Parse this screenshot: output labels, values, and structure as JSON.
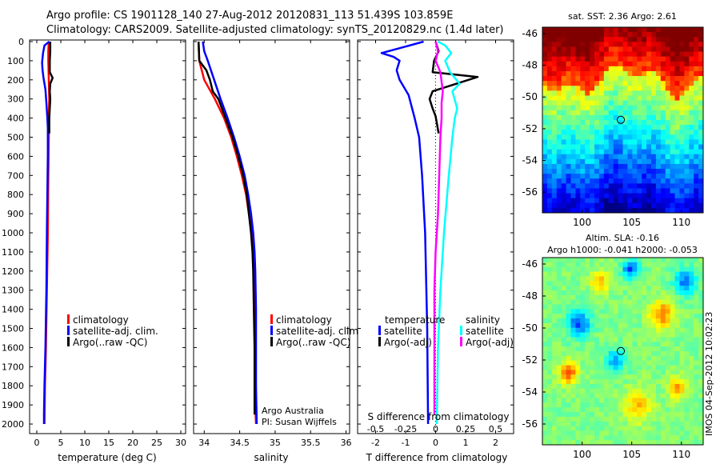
{
  "header": {
    "line1": "Argo profile: CS 1901128_140 27-Aug-2012 20120831_113 51.439S 103.859E",
    "line2": "Climatology: CARS2009. Satellite-adjusted climatology: synTS_20120829.nc (1.4d later)"
  },
  "colors": {
    "climatology": "#ff0000",
    "satellite": "#0000ff",
    "argo": "#000000",
    "salinity_satellite": "#00ffff",
    "salinity_argo": "#ff00ff"
  },
  "depth_ticks": [
    "0",
    "100",
    "200",
    "300",
    "400",
    "500",
    "600",
    "700",
    "800",
    "900",
    "1000",
    "1100",
    "1200",
    "1300",
    "1400",
    "1500",
    "1600",
    "1700",
    "1800",
    "1900",
    "2000"
  ],
  "chart_data": [
    {
      "type": "line",
      "xlabel": "temperature (deg C)",
      "xticks": [
        "0",
        "5",
        "10",
        "15",
        "20",
        "25",
        "30"
      ],
      "xlim": [
        -1.5,
        31
      ],
      "ylim": [
        2050,
        0
      ],
      "legend": [
        "climatology",
        "satellite-adj. clim.",
        "Argo(..raw -QC)"
      ],
      "series": [
        {
          "name": "climatology",
          "color": "#ff0000",
          "points": [
            [
              2.5,
              0
            ],
            [
              2.4,
              50
            ],
            [
              2.4,
              100
            ],
            [
              2.5,
              200
            ],
            [
              2.6,
              300
            ],
            [
              2.5,
              400
            ],
            [
              2.5,
              500
            ],
            [
              2.4,
              700
            ],
            [
              2.3,
              1000
            ],
            [
              2.1,
              1300
            ],
            [
              1.9,
              1600
            ],
            [
              1.7,
              1800
            ],
            [
              1.6,
              2000
            ]
          ]
        },
        {
          "name": "satellite-adj. clim.",
          "color": "#0000ff",
          "points": [
            [
              2.6,
              0
            ],
            [
              1.6,
              20
            ],
            [
              1.3,
              60
            ],
            [
              1.1,
              110
            ],
            [
              1.2,
              150
            ],
            [
              1.4,
              190
            ],
            [
              1.8,
              250
            ],
            [
              2.0,
              320
            ],
            [
              2.2,
              400
            ],
            [
              2.3,
              450
            ],
            [
              2.3,
              600
            ],
            [
              2.2,
              800
            ],
            [
              2.1,
              1000
            ],
            [
              2.0,
              1300
            ],
            [
              1.8,
              1600
            ],
            [
              1.6,
              1800
            ],
            [
              1.5,
              1950
            ],
            [
              1.5,
              2000
            ]
          ]
        },
        {
          "name": "Argo(..raw -QC)",
          "color": "#000000",
          "points": [
            [
              2.8,
              0
            ],
            [
              2.8,
              50
            ],
            [
              2.7,
              100
            ],
            [
              2.7,
              160
            ],
            [
              3.3,
              190
            ],
            [
              2.8,
              220
            ],
            [
              2.7,
              260
            ],
            [
              2.8,
              300
            ],
            [
              2.7,
              350
            ],
            [
              2.6,
              400
            ],
            [
              2.6,
              480
            ]
          ]
        }
      ]
    },
    {
      "type": "line",
      "xlabel": "salinity",
      "xticks": [
        "34",
        "34.5",
        "35",
        "35.5",
        "36"
      ],
      "xlim": [
        33.85,
        36.05
      ],
      "ylim": [
        2050,
        0
      ],
      "legend": [
        "climatology",
        "satellite-adj. clim.",
        "Argo(..raw -QC)"
      ],
      "annotations": [
        "Argo Australia",
        "PI: Susan Wijffels"
      ],
      "series": [
        {
          "name": "climatology",
          "color": "#ff0000",
          "points": [
            [
              33.92,
              0
            ],
            [
              33.93,
              100
            ],
            [
              34.0,
              200
            ],
            [
              34.15,
              300
            ],
            [
              34.28,
              400
            ],
            [
              34.38,
              500
            ],
            [
              34.46,
              600
            ],
            [
              34.53,
              700
            ],
            [
              34.59,
              800
            ],
            [
              34.63,
              900
            ],
            [
              34.67,
              1000
            ],
            [
              34.69,
              1100
            ],
            [
              34.7,
              1200
            ],
            [
              34.71,
              1400
            ],
            [
              34.72,
              1600
            ],
            [
              34.72,
              1800
            ],
            [
              34.72,
              1900
            ],
            [
              34.73,
              2000
            ]
          ]
        },
        {
          "name": "satellite-adj. clim.",
          "color": "#0000ff",
          "points": [
            [
              33.98,
              0
            ],
            [
              34.0,
              50
            ],
            [
              34.05,
              100
            ],
            [
              34.14,
              200
            ],
            [
              34.23,
              300
            ],
            [
              34.33,
              400
            ],
            [
              34.42,
              500
            ],
            [
              34.5,
              600
            ],
            [
              34.57,
              700
            ],
            [
              34.62,
              800
            ],
            [
              34.66,
              900
            ],
            [
              34.69,
              1000
            ],
            [
              34.71,
              1100
            ],
            [
              34.72,
              1200
            ],
            [
              34.73,
              1400
            ],
            [
              34.73,
              1600
            ],
            [
              34.73,
              1800
            ],
            [
              34.74,
              2000
            ]
          ]
        },
        {
          "name": "Argo(..raw -QC)",
          "color": "#000000",
          "points": [
            [
              33.92,
              0
            ],
            [
              33.93,
              100
            ],
            [
              34.03,
              150
            ],
            [
              34.08,
              200
            ],
            [
              34.12,
              260
            ],
            [
              34.2,
              300
            ],
            [
              34.3,
              400
            ],
            [
              34.4,
              500
            ],
            [
              34.48,
              600
            ],
            [
              34.55,
              700
            ],
            [
              34.6,
              800
            ],
            [
              34.63,
              900
            ],
            [
              34.66,
              1000
            ],
            [
              34.68,
              1100
            ],
            [
              34.69,
              1200
            ],
            [
              34.7,
              1400
            ],
            [
              34.71,
              1600
            ],
            [
              34.71,
              1800
            ],
            [
              34.71,
              1950
            ]
          ]
        }
      ]
    },
    {
      "type": "line",
      "xlabel": "T difference from climatology",
      "xlabel_top": "S difference from climatology",
      "xticks": [
        "-2",
        "-1",
        "0",
        "1",
        "2"
      ],
      "xticks_top": [
        "-0.5",
        "-0.25",
        "0",
        "0.25",
        "0.5"
      ],
      "xlim": [
        -2.6,
        2.6
      ],
      "s_range": [
        -0.65,
        0.65
      ],
      "ylim": [
        2050,
        0
      ],
      "legend": {
        "temperature_title": "temperature",
        "salinity_title": "salinity",
        "temperature": [
          "satellite",
          "Argo(-adj)"
        ],
        "salinity": [
          "satellite",
          "Argo(-adj)"
        ]
      },
      "series": [
        {
          "name": "temperature satellite",
          "color": "#0000ff",
          "points": [
            [
              -0.4,
              0
            ],
            [
              -1.1,
              30
            ],
            [
              -1.8,
              60
            ],
            [
              -1.4,
              80
            ],
            [
              -1.2,
              100
            ],
            [
              -1.3,
              150
            ],
            [
              -1.2,
              200
            ],
            [
              -0.9,
              280
            ],
            [
              -0.7,
              400
            ],
            [
              -0.55,
              500
            ],
            [
              -0.45,
              700
            ],
            [
              -0.35,
              1000
            ],
            [
              -0.28,
              1500
            ],
            [
              -0.25,
              2000
            ]
          ]
        },
        {
          "name": "temperature Argo(-adj)",
          "color": "#000000",
          "points": [
            [
              0.0,
              0
            ],
            [
              0.1,
              50
            ],
            [
              -0.05,
              100
            ],
            [
              -0.1,
              160
            ],
            [
              0.5,
              170
            ],
            [
              1.4,
              185
            ],
            [
              0.7,
              220
            ],
            [
              -0.1,
              260
            ],
            [
              -0.2,
              300
            ],
            [
              -0.1,
              350
            ],
            [
              0.0,
              390
            ],
            [
              0.1,
              480
            ]
          ]
        },
        {
          "name": "salinity satellite",
          "color": "#00ffff",
          "points": [
            [
              0.02,
              0
            ],
            [
              0.08,
              20
            ],
            [
              0.13,
              60
            ],
            [
              0.08,
              100
            ],
            [
              0.12,
              160
            ],
            [
              0.2,
              220
            ],
            [
              0.14,
              260
            ],
            [
              0.18,
              350
            ],
            [
              0.16,
              400
            ],
            [
              0.14,
              500
            ],
            [
              0.11,
              700
            ],
            [
              0.07,
              1000
            ],
            [
              0.04,
              1300
            ],
            [
              0.02,
              1600
            ],
            [
              0.01,
              2000
            ]
          ]
        },
        {
          "name": "salinity Argo(-adj)",
          "color": "#ff00ff",
          "points": [
            [
              0.0,
              0
            ],
            [
              0.02,
              50
            ],
            [
              0.0,
              100
            ],
            [
              0.04,
              160
            ],
            [
              0.06,
              260
            ],
            [
              0.05,
              320
            ],
            [
              0.05,
              400
            ],
            [
              0.04,
              500
            ],
            [
              0.03,
              700
            ],
            [
              0.02,
              900
            ],
            [
              0.0,
              1100
            ],
            [
              -0.01,
              1300
            ],
            [
              -0.01,
              1600
            ],
            [
              -0.01,
              1950
            ]
          ]
        }
      ]
    },
    {
      "type": "heatmap",
      "title": "sat. SST: 2.36 Argo: 2.61",
      "xticks": [
        "100",
        "105",
        "110"
      ],
      "yticks": [
        "-46",
        "-48",
        "-50",
        "-52",
        "-54",
        "-56"
      ],
      "xlim": [
        96,
        112.2
      ],
      "ylim": [
        -57.3,
        -45.6
      ],
      "marker": [
        103.9,
        -51.44
      ]
    },
    {
      "type": "heatmap",
      "title_line1": "Altim. SLA: -0.16",
      "title_line2": "Argo h1000: -0.041 h2000: -0.053",
      "xticks": [
        "100",
        "105",
        "110"
      ],
      "yticks": [
        "-46",
        "-48",
        "-50",
        "-52",
        "-54",
        "-56"
      ],
      "xlim": [
        96,
        112.2
      ],
      "ylim": [
        -57.3,
        -45.6
      ],
      "marker": [
        103.9,
        -51.44
      ]
    }
  ],
  "stamp": "IMOS 04-Sep-2012 10:02:23"
}
